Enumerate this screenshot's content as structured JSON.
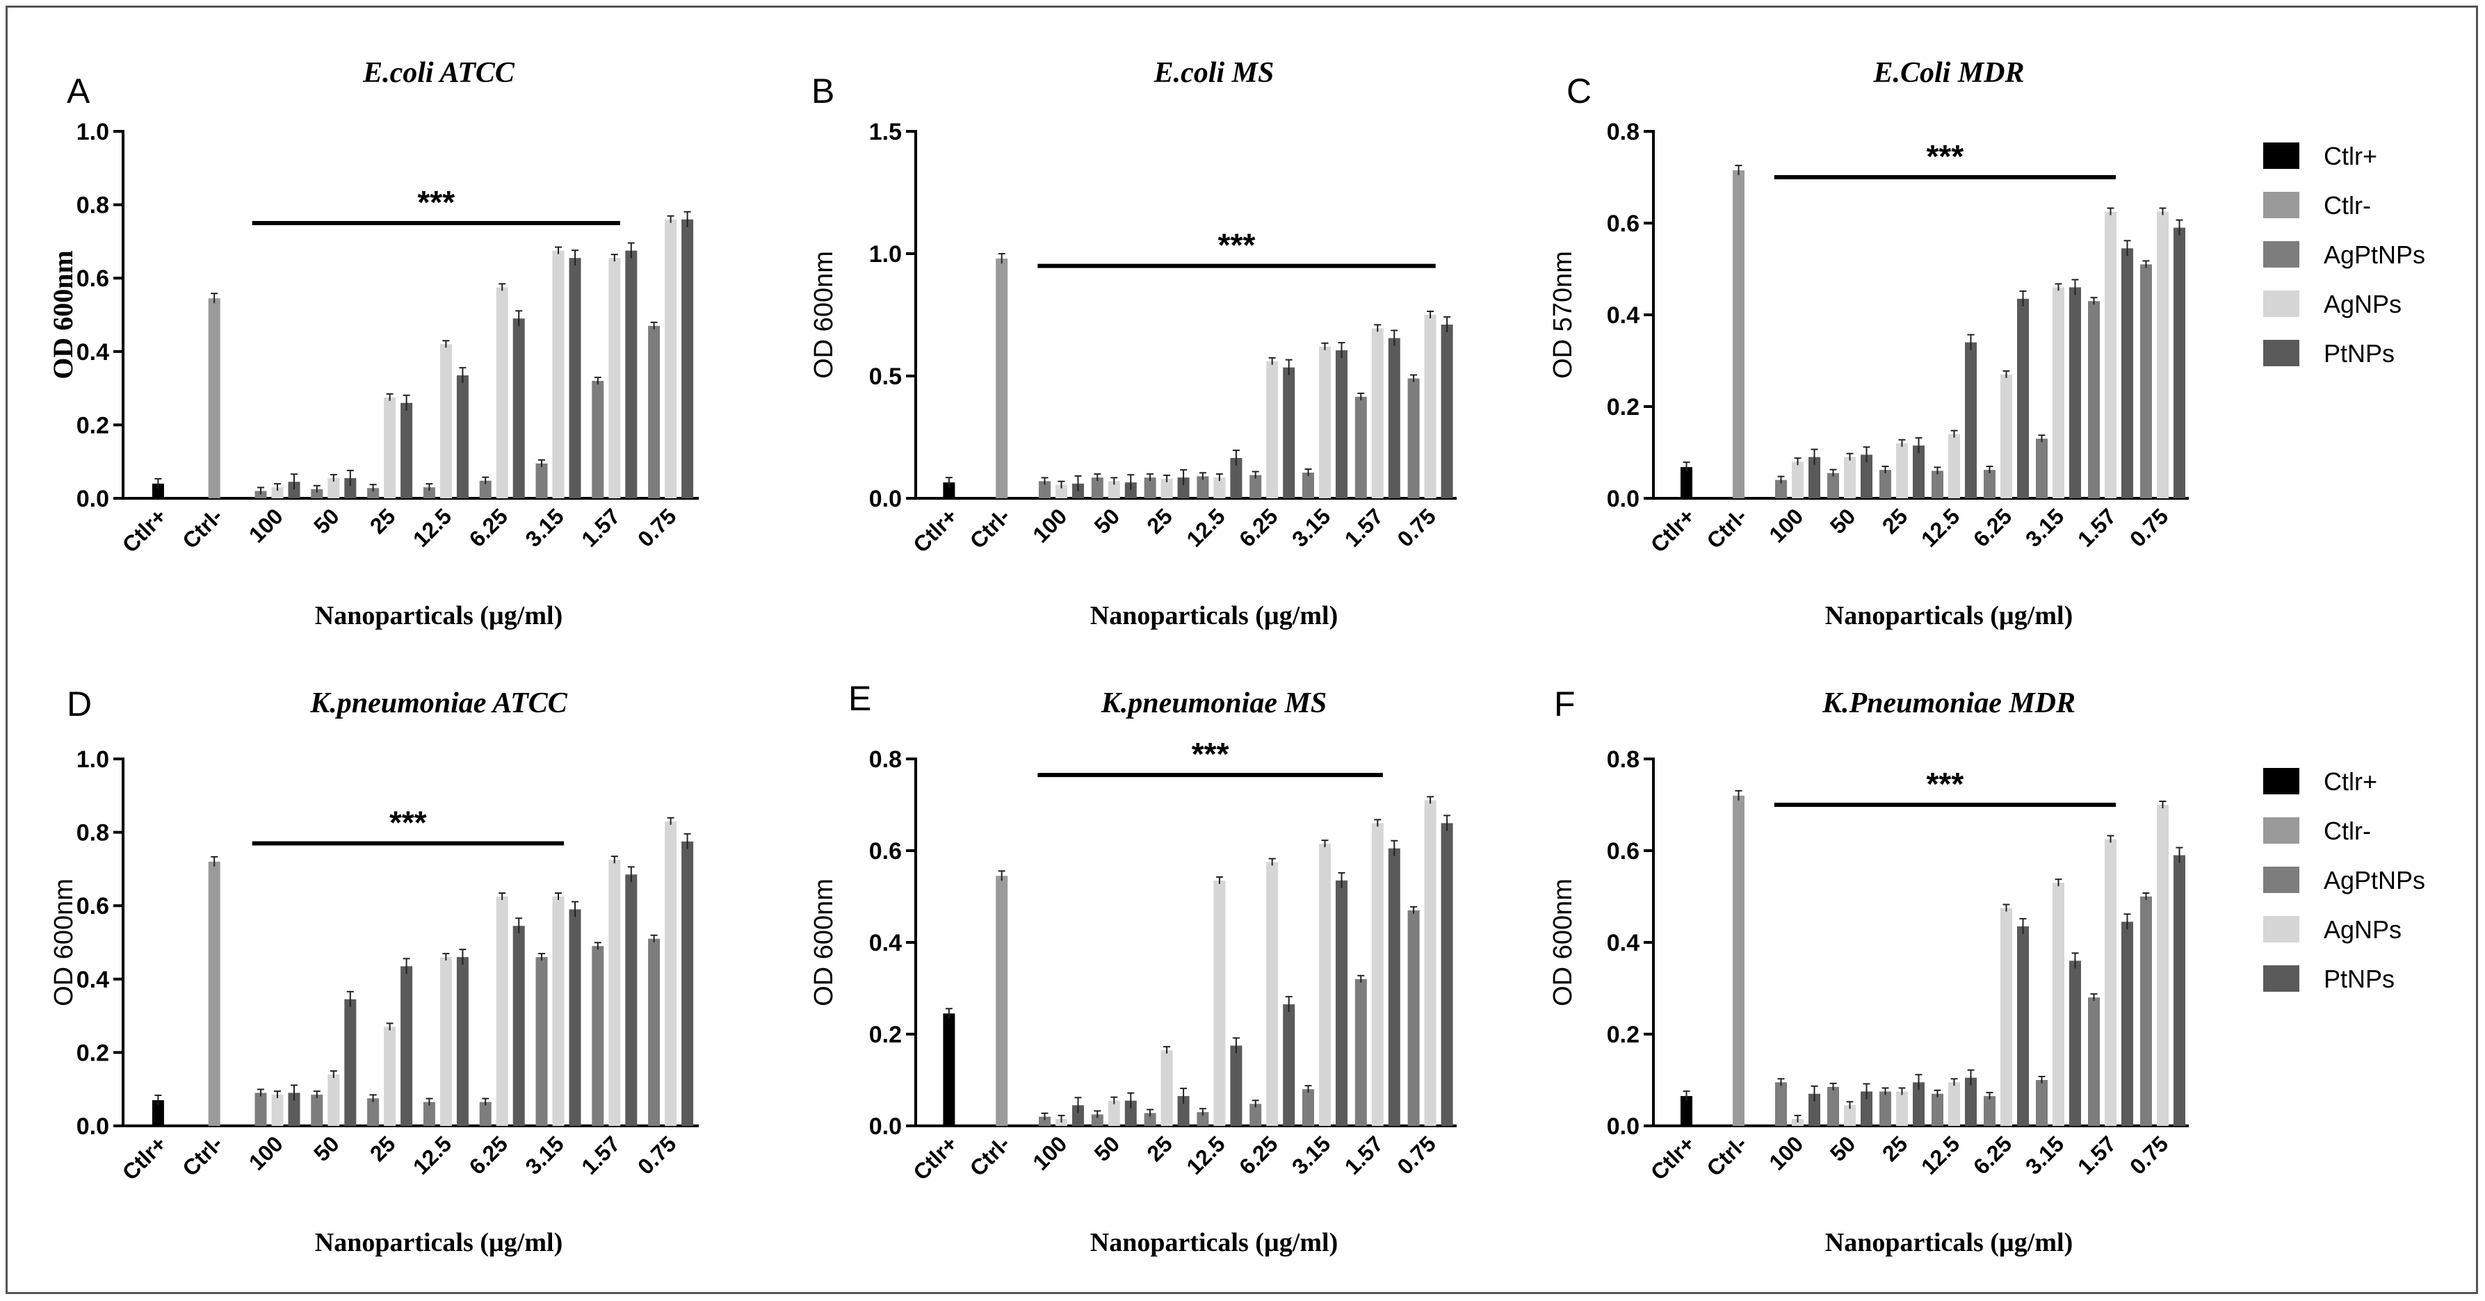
{
  "colors": {
    "Ctlr+": "#000000",
    "Ctlr-": "#9a9a9a",
    "AgPtNPs": "#7d7d7d",
    "AgNPs": "#d6d6d6",
    "PtNPs": "#5a5a5a"
  },
  "legend": [
    {
      "label": "Ctlr+",
      "color": "#000000"
    },
    {
      "label": "Ctlr-",
      "color": "#9a9a9a"
    },
    {
      "label": "AgPtNPs",
      "color": "#7d7d7d"
    },
    {
      "label": "AgNPs",
      "color": "#d6d6d6"
    },
    {
      "label": "PtNPs",
      "color": "#5a5a5a"
    }
  ],
  "chart_data": [
    {
      "panel": "A",
      "type": "bar",
      "title": "E.coli ATCC",
      "ylabel": "OD 600nm",
      "ylabel_style": "serif",
      "xlabel": "Nanoparticals (µg/ml)",
      "yticks": [
        "0.0",
        "0.2",
        "0.4",
        "0.6",
        "0.8",
        "1.0"
      ],
      "ylim": [
        0,
        1.0
      ],
      "controls": [
        {
          "label": "Ctlr+",
          "value": 0.04
        },
        {
          "label": "Ctrl-",
          "value": 0.545
        }
      ],
      "categories": [
        "100",
        "50",
        "25",
        "12.5",
        "6.25",
        "3.15",
        "1.57",
        "0.75"
      ],
      "series": [
        {
          "name": "AgPtNPs",
          "values": [
            0.02,
            0.025,
            0.028,
            0.03,
            0.048,
            0.095,
            0.32,
            0.47
          ]
        },
        {
          "name": "AgNPs",
          "values": [
            0.03,
            0.055,
            0.275,
            0.42,
            0.575,
            0.675,
            0.655,
            0.76
          ]
        },
        {
          "name": "PtNPs",
          "values": [
            0.045,
            0.055,
            0.26,
            0.335,
            0.49,
            0.655,
            0.675,
            0.76
          ]
        }
      ],
      "significance": {
        "label": "***",
        "from": "100",
        "to": "1.57"
      }
    },
    {
      "panel": "B",
      "type": "bar",
      "title": "E.coli MS",
      "ylabel": "OD 600nm",
      "ylabel_style": "sans",
      "xlabel": "Nanoparticals (µg/ml)",
      "yticks": [
        "0.0",
        "0.5",
        "1.0",
        "1.5"
      ],
      "ylim": [
        0,
        1.5
      ],
      "controls": [
        {
          "label": "Ctlr+",
          "value": 0.065
        },
        {
          "label": "Ctrl-",
          "value": 0.98
        }
      ],
      "categories": [
        "100",
        "50",
        "25",
        "12.5",
        "6.25",
        "3.15",
        "1.57",
        "0.75"
      ],
      "series": [
        {
          "name": "AgPtNPs",
          "values": [
            0.07,
            0.085,
            0.085,
            0.09,
            0.095,
            0.105,
            0.415,
            0.49
          ]
        },
        {
          "name": "AgNPs",
          "values": [
            0.055,
            0.07,
            0.08,
            0.085,
            0.56,
            0.62,
            0.695,
            0.75
          ]
        },
        {
          "name": "PtNPs",
          "values": [
            0.06,
            0.065,
            0.085,
            0.165,
            0.535,
            0.605,
            0.655,
            0.71
          ]
        }
      ],
      "significance": {
        "label": "***",
        "from": "100",
        "to": "0.75"
      }
    },
    {
      "panel": "C",
      "type": "bar",
      "title": "E.Coli MDR",
      "ylabel": "OD 570nm",
      "ylabel_style": "sans",
      "xlabel": "Nanoparticals (µg/ml)",
      "yticks": [
        "0.0",
        "0.2",
        "0.4",
        "0.6",
        "0.8"
      ],
      "ylim": [
        0,
        0.8
      ],
      "controls": [
        {
          "label": "Ctlr+",
          "value": 0.068
        },
        {
          "label": "Ctrl-",
          "value": 0.715
        }
      ],
      "categories": [
        "100",
        "50",
        "25",
        "12.5",
        "6.25",
        "3.15",
        "1.57",
        "0.75"
      ],
      "series": [
        {
          "name": "AgPtNPs",
          "values": [
            0.04,
            0.055,
            0.062,
            0.06,
            0.062,
            0.13,
            0.43,
            0.51
          ]
        },
        {
          "name": "AgNPs",
          "values": [
            0.08,
            0.09,
            0.12,
            0.14,
            0.27,
            0.46,
            0.625,
            0.625
          ]
        },
        {
          "name": "PtNPs",
          "values": [
            0.09,
            0.095,
            0.115,
            0.34,
            0.435,
            0.46,
            0.545,
            0.59
          ]
        }
      ],
      "significance": {
        "label": "***",
        "from": "100",
        "to": "1.57"
      }
    },
    {
      "panel": "D",
      "type": "bar",
      "title": "K.pneumoniae ATCC",
      "ylabel": "OD 600nm",
      "ylabel_style": "sans",
      "xlabel": "Nanoparticals (µg/ml)",
      "yticks": [
        "0.0",
        "0.2",
        "0.4",
        "0.6",
        "0.8",
        "1.0"
      ],
      "ylim": [
        0,
        1.0
      ],
      "controls": [
        {
          "label": "Ctlr+",
          "value": 0.07
        },
        {
          "label": "Ctrl-",
          "value": 0.72
        }
      ],
      "categories": [
        "100",
        "50",
        "25",
        "12.5",
        "6.25",
        "3.15",
        "1.57",
        "0.75"
      ],
      "series": [
        {
          "name": "AgPtNPs",
          "values": [
            0.09,
            0.085,
            0.075,
            0.065,
            0.065,
            0.46,
            0.49,
            0.51
          ]
        },
        {
          "name": "AgNPs",
          "values": [
            0.085,
            0.14,
            0.27,
            0.46,
            0.625,
            0.625,
            0.725,
            0.83
          ]
        },
        {
          "name": "PtNPs",
          "values": [
            0.09,
            0.345,
            0.435,
            0.46,
            0.545,
            0.59,
            0.685,
            0.775
          ]
        }
      ],
      "significance": {
        "label": "***",
        "from": "100",
        "to": "3.15"
      }
    },
    {
      "panel": "E",
      "type": "bar",
      "title": "K.pneumoniae MS",
      "ylabel": "OD 600nm",
      "ylabel_style": "sans",
      "xlabel": "Nanoparticals (µg/ml)",
      "yticks": [
        "0.0",
        "0.2",
        "0.4",
        "0.6",
        "0.8"
      ],
      "ylim": [
        0,
        0.8
      ],
      "controls": [
        {
          "label": "Ctlr+",
          "value": 0.245
        },
        {
          "label": "Ctrl-",
          "value": 0.545
        }
      ],
      "categories": [
        "100",
        "50",
        "25",
        "12.5",
        "6.25",
        "3.15",
        "1.57",
        "0.75"
      ],
      "series": [
        {
          "name": "AgPtNPs",
          "values": [
            0.02,
            0.025,
            0.028,
            0.03,
            0.048,
            0.08,
            0.32,
            0.47
          ]
        },
        {
          "name": "AgNPs",
          "values": [
            0.015,
            0.055,
            0.165,
            0.535,
            0.575,
            0.615,
            0.66,
            0.71
          ]
        },
        {
          "name": "PtNPs",
          "values": [
            0.045,
            0.055,
            0.065,
            0.175,
            0.265,
            0.535,
            0.605,
            0.66
          ]
        }
      ],
      "significance": {
        "label": "***",
        "from": "100",
        "to": "1.57"
      }
    },
    {
      "panel": "F",
      "type": "bar",
      "title": "K.Pneumoniae MDR",
      "ylabel": "OD 600nm",
      "ylabel_style": "sans",
      "xlabel": "Nanoparticals (µg/ml)",
      "yticks": [
        "0.0",
        "0.2",
        "0.4",
        "0.6",
        "0.8"
      ],
      "ylim": [
        0,
        0.8
      ],
      "controls": [
        {
          "label": "Ctlr+",
          "value": 0.065
        },
        {
          "label": "Ctrl-",
          "value": 0.72
        }
      ],
      "categories": [
        "100",
        "50",
        "25",
        "12.5",
        "6.25",
        "3.15",
        "1.57",
        "0.75"
      ],
      "series": [
        {
          "name": "AgPtNPs",
          "values": [
            0.095,
            0.085,
            0.075,
            0.07,
            0.065,
            0.1,
            0.28,
            0.5
          ]
        },
        {
          "name": "AgNPs",
          "values": [
            0.015,
            0.045,
            0.075,
            0.095,
            0.475,
            0.53,
            0.625,
            0.7
          ]
        },
        {
          "name": "PtNPs",
          "values": [
            0.07,
            0.075,
            0.095,
            0.105,
            0.435,
            0.36,
            0.445,
            0.59
          ]
        }
      ],
      "significance": {
        "label": "***",
        "from": "100",
        "to": "1.57"
      }
    }
  ]
}
